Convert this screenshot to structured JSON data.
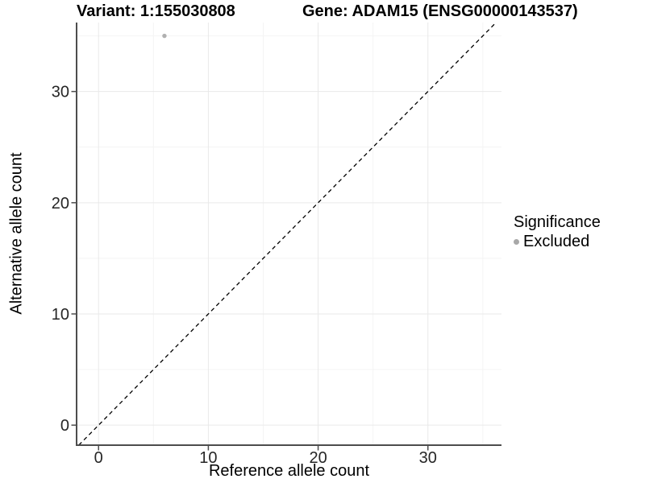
{
  "titles": {
    "variant": "Variant: 1:155030808",
    "gene": "Gene: ADAM15 (ENSG00000143537)"
  },
  "legend": {
    "title": "Significance",
    "items": [
      {
        "label": "Excluded",
        "color": "#a8a8a8"
      }
    ]
  },
  "colors": {
    "background": "#ffffff",
    "axis_line": "#4d4d4d",
    "tick_mark": "#4d4d4d",
    "tick_label": "#262626",
    "grid_major": "#e9e9e9",
    "grid_minor": "#f4f4f4",
    "reference_line": "#000000",
    "point": "#b0b0b0"
  },
  "chart_data": {
    "type": "scatter",
    "title": "Variant: 1:155030808          Gene: ADAM15 (ENSG00000143537)",
    "xlabel": "Reference allele count",
    "ylabel": "Alternative allele count",
    "xlim": [
      -2,
      36.7
    ],
    "ylim": [
      -1.8,
      36.2
    ],
    "x_ticks": [
      0,
      10,
      20,
      30
    ],
    "y_ticks": [
      0,
      10,
      20,
      30
    ],
    "x_minor_ticks": [
      5,
      15,
      25,
      35
    ],
    "y_minor_ticks": [
      5,
      15,
      25,
      35
    ],
    "grid": true,
    "legend_position": "right",
    "reference_line": {
      "type": "identity y=x",
      "style": "dashed",
      "color": "#000000"
    },
    "series": [
      {
        "name": "Excluded",
        "color": "#b0b0b0",
        "points": [
          [
            6,
            35
          ]
        ]
      }
    ]
  }
}
